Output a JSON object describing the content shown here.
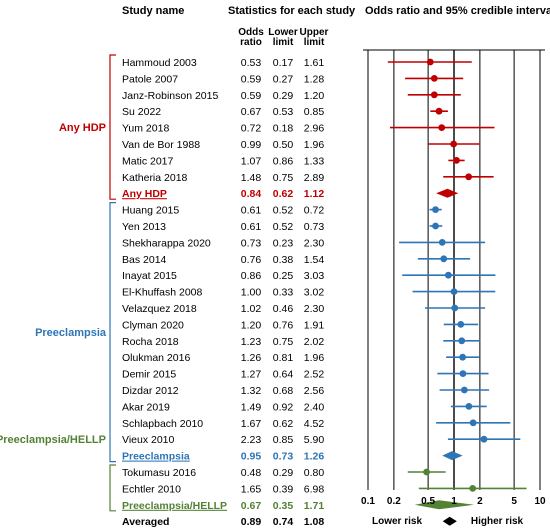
{
  "headers": {
    "study_name": "Study name",
    "stats": "Statistics for each study",
    "plot": "Odds ratio and 95% credible interval",
    "col_or_1": "Odds",
    "col_or_2": "ratio",
    "col_lo_1": "Lower",
    "col_lo_2": "limit",
    "col_hi_1": "Upper",
    "col_hi_2": "limit"
  },
  "colors": {
    "any_hdp": "#c00000",
    "preeclampsia": "#2e75b6",
    "preeclampsia_hellp": "#548235",
    "overall": "#000000"
  },
  "chart_data": {
    "type": "forest",
    "x_scale": "log",
    "xlim": [
      0.1,
      10
    ],
    "reference_line": 1,
    "x_ticks": [
      "0.1",
      "0.2",
      "0.5",
      "1",
      "2",
      "5",
      "10"
    ],
    "x_tick_values": [
      0.1,
      0.2,
      0.5,
      1,
      2,
      5,
      10
    ],
    "x_label_left": "Lower risk",
    "x_label_right": "Higher risk",
    "groups": [
      {
        "label": "Any HDP",
        "color": "#c00000",
        "studies": [
          {
            "name": "Hammoud 2003",
            "or": "0.53",
            "lower": "0.17",
            "upper": "1.61"
          },
          {
            "name": "Patole 2007",
            "or": "0.59",
            "lower": "0.27",
            "upper": "1.28"
          },
          {
            "name": "Janz-Robinson 2015",
            "or": "0.59",
            "lower": "0.29",
            "upper": "1.20"
          },
          {
            "name": "Su 2022",
            "or": "0.67",
            "lower": "0.53",
            "upper": "0.85"
          },
          {
            "name": "Yum 2018",
            "or": "0.72",
            "lower": "0.18",
            "upper": "2.96"
          },
          {
            "name": "Van de Bor 1988",
            "or": "0.99",
            "lower": "0.50",
            "upper": "1.96"
          },
          {
            "name": "Matic 2017",
            "or": "1.07",
            "lower": "0.86",
            "upper": "1.33"
          },
          {
            "name": "Katheria 2018",
            "or": "1.48",
            "lower": "0.75",
            "upper": "2.89"
          }
        ],
        "summary": {
          "name": "Any HDP",
          "or": "0.84",
          "lower": "0.62",
          "upper": "1.12"
        }
      },
      {
        "label": "Preeclampsia",
        "color": "#2e75b6",
        "studies": [
          {
            "name": "Huang 2015",
            "or": "0.61",
            "lower": "0.52",
            "upper": "0.72"
          },
          {
            "name": "Yen 2013",
            "or": "0.61",
            "lower": "0.52",
            "upper": "0.73"
          },
          {
            "name": "Shekharappa 2020",
            "or": "0.73",
            "lower": "0.23",
            "upper": "2.30"
          },
          {
            "name": "Bas 2014",
            "or": "0.76",
            "lower": "0.38",
            "upper": "1.54"
          },
          {
            "name": "Inayat 2015",
            "or": "0.86",
            "lower": "0.25",
            "upper": "3.03"
          },
          {
            "name": "El-Khuffash 2008",
            "or": "1.00",
            "lower": "0.33",
            "upper": "3.02"
          },
          {
            "name": "Velazquez 2018",
            "or": "1.02",
            "lower": "0.46",
            "upper": "2.30"
          },
          {
            "name": "Clyman 2020",
            "or": "1.20",
            "lower": "0.76",
            "upper": "1.91"
          },
          {
            "name": "Rocha 2018",
            "or": "1.23",
            "lower": "0.75",
            "upper": "2.02"
          },
          {
            "name": "Olukman 2016",
            "or": "1.26",
            "lower": "0.81",
            "upper": "1.96"
          },
          {
            "name": "Demir 2015",
            "or": "1.27",
            "lower": "0.64",
            "upper": "2.52"
          },
          {
            "name": "Dizdar 2012",
            "or": "1.32",
            "lower": "0.68",
            "upper": "2.56"
          },
          {
            "name": "Akar 2019",
            "or": "1.49",
            "lower": "0.92",
            "upper": "2.40"
          },
          {
            "name": "Schlapbach 2010",
            "or": "1.67",
            "lower": "0.62",
            "upper": "4.52"
          },
          {
            "name": "Vieux 2010",
            "or": "2.23",
            "lower": "0.85",
            "upper": "5.90"
          }
        ],
        "summary": {
          "name": "Preeclampsia",
          "or": "0.95",
          "lower": "0.73",
          "upper": "1.26"
        }
      },
      {
        "label": "Preeclampsia/HELLP",
        "color": "#548235",
        "studies": [
          {
            "name": "Tokumasu 2016",
            "or": "0.48",
            "lower": "0.29",
            "upper": "0.80"
          },
          {
            "name": "Echtler 2010",
            "or": "1.65",
            "lower": "0.39",
            "upper": "6.98"
          }
        ],
        "summary": {
          "name": "Preeclampsia/HELLP",
          "or": "0.67",
          "lower": "0.35",
          "upper": "1.71"
        }
      }
    ],
    "overall": {
      "name": "Averaged",
      "or": "0.89",
      "lower": "0.74",
      "upper": "1.08"
    }
  }
}
